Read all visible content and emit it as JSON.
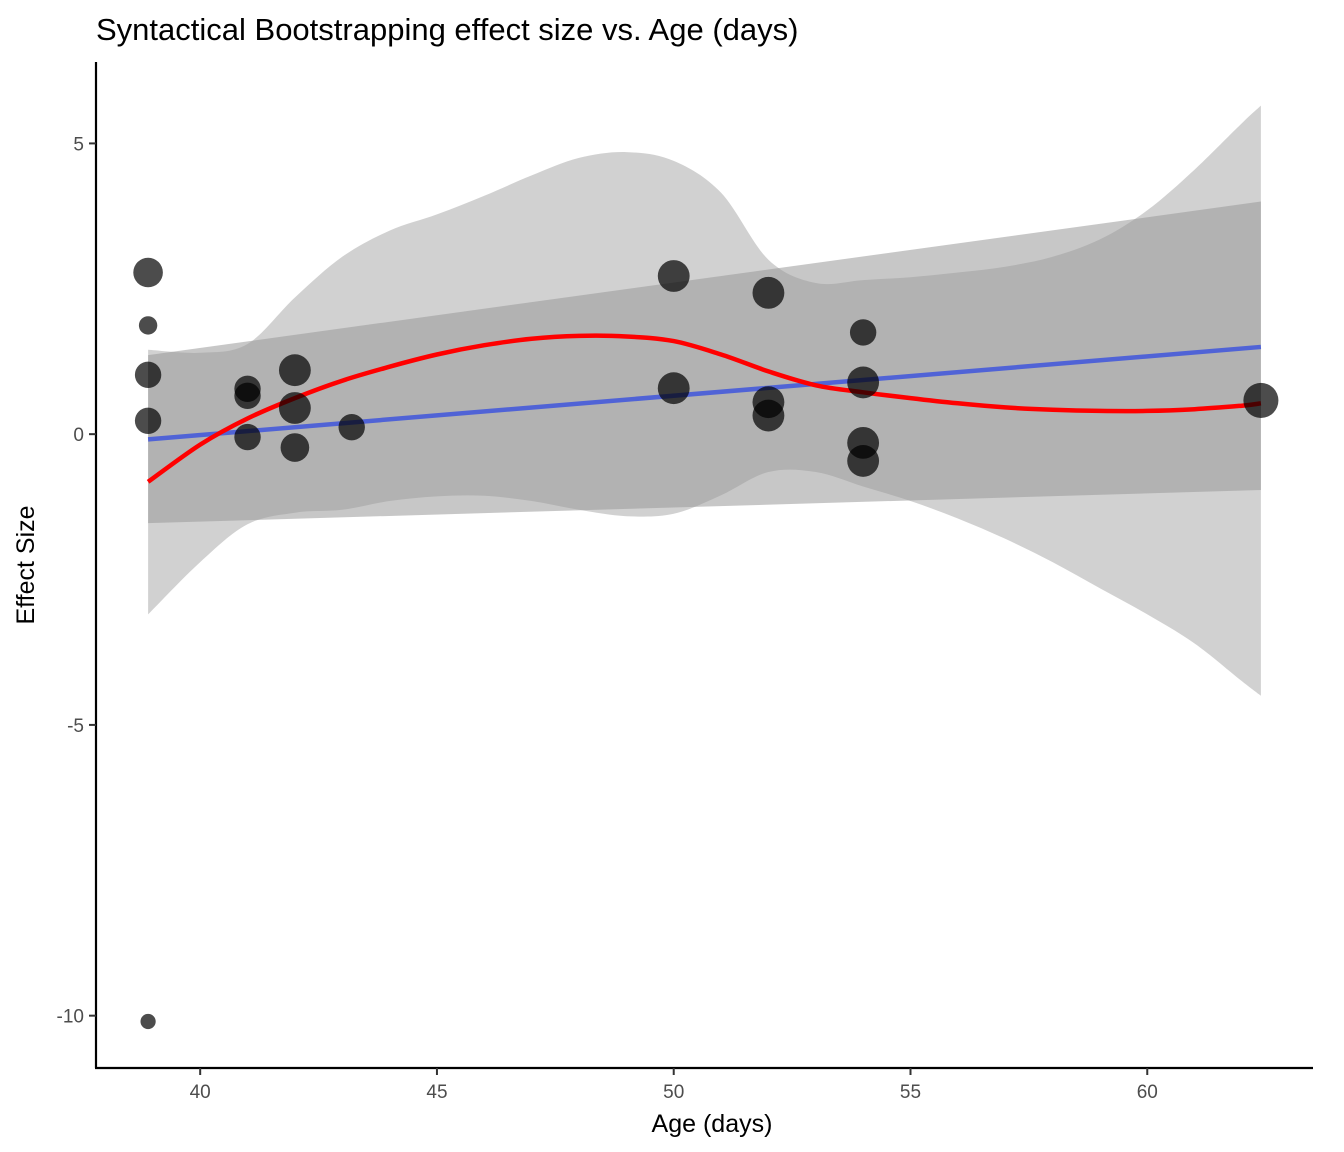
{
  "chart_data": {
    "type": "scatter",
    "title": "Syntactical Bootstrapping effect size vs. Age (days)",
    "xlabel": "Age (days)",
    "ylabel": "Effect Size",
    "xlim": [
      37.8,
      63.5
    ],
    "ylim": [
      -10.9,
      6.4
    ],
    "x_ticks": [
      {
        "value": 40,
        "label": "40"
      },
      {
        "value": 45,
        "label": "45"
      },
      {
        "value": 50,
        "label": "50"
      },
      {
        "value": 55,
        "label": "55"
      },
      {
        "value": 60,
        "label": "60"
      }
    ],
    "y_ticks": [
      {
        "value": 5,
        "label": "5"
      },
      {
        "value": 0,
        "label": "0"
      },
      {
        "value": -5,
        "label": "-5"
      },
      {
        "value": -10,
        "label": "-10"
      }
    ],
    "grid": false,
    "legend": false,
    "point_color": "#000000",
    "point_opacity": 0.7,
    "points": [
      {
        "x": 38.9,
        "y": 2.78,
        "weight": 0.55
      },
      {
        "x": 38.9,
        "y": 1.87,
        "weight": 0.2
      },
      {
        "x": 38.9,
        "y": 1.02,
        "weight": 0.45
      },
      {
        "x": 38.9,
        "y": 0.23,
        "weight": 0.45
      },
      {
        "x": 38.9,
        "y": -10.1,
        "weight": 0.1
      },
      {
        "x": 41.0,
        "y": 0.78,
        "weight": 0.45
      },
      {
        "x": 41.0,
        "y": 0.66,
        "weight": 0.45
      },
      {
        "x": 41.0,
        "y": -0.05,
        "weight": 0.45
      },
      {
        "x": 42.0,
        "y": 1.1,
        "weight": 0.62
      },
      {
        "x": 42.0,
        "y": 0.45,
        "weight": 0.62
      },
      {
        "x": 42.0,
        "y": -0.23,
        "weight": 0.52
      },
      {
        "x": 43.2,
        "y": 0.12,
        "weight": 0.45
      },
      {
        "x": 50.0,
        "y": 2.72,
        "weight": 0.62
      },
      {
        "x": 50.0,
        "y": 0.79,
        "weight": 0.62
      },
      {
        "x": 52.0,
        "y": 2.43,
        "weight": 0.62
      },
      {
        "x": 52.0,
        "y": 0.55,
        "weight": 0.62
      },
      {
        "x": 52.0,
        "y": 0.32,
        "weight": 0.62
      },
      {
        "x": 54.0,
        "y": 1.75,
        "weight": 0.45
      },
      {
        "x": 54.0,
        "y": 0.89,
        "weight": 0.62
      },
      {
        "x": 54.0,
        "y": -0.15,
        "weight": 0.62
      },
      {
        "x": 54.0,
        "y": -0.46,
        "weight": 0.62
      },
      {
        "x": 62.4,
        "y": 0.58,
        "weight": 0.72
      }
    ],
    "linear_fit": {
      "color": "#5063d6",
      "x": [
        38.9,
        62.4
      ],
      "y": [
        -0.09,
        1.5
      ],
      "band_lower": [
        -1.53,
        -0.96
      ],
      "band_upper": [
        1.36,
        4.0
      ],
      "band_color": "#999999"
    },
    "smooth_fit": {
      "color": "#ff0000",
      "x": [
        38.9,
        40,
        41,
        42,
        43,
        44,
        45,
        46,
        47,
        48,
        49,
        50,
        51,
        52,
        53,
        54,
        55,
        56,
        57,
        58,
        59,
        60,
        61,
        62,
        62.4
      ],
      "y": [
        -0.82,
        -0.18,
        0.27,
        0.62,
        0.92,
        1.16,
        1.37,
        1.53,
        1.64,
        1.69,
        1.68,
        1.6,
        1.37,
        1.08,
        0.84,
        0.72,
        0.62,
        0.53,
        0.46,
        0.42,
        0.4,
        0.4,
        0.43,
        0.49,
        0.53
      ],
      "band_lower": [
        -3.1,
        -2.2,
        -1.55,
        -1.35,
        -1.3,
        -1.15,
        -1.07,
        -1.06,
        -1.15,
        -1.3,
        -1.41,
        -1.37,
        -1.05,
        -0.65,
        -0.65,
        -0.9,
        -1.15,
        -1.45,
        -1.8,
        -2.2,
        -2.65,
        -3.1,
        -3.6,
        -4.25,
        -4.5
      ],
      "band_upper": [
        1.45,
        1.4,
        1.55,
        2.35,
        3.05,
        3.5,
        3.78,
        4.1,
        4.45,
        4.75,
        4.85,
        4.7,
        4.15,
        3.0,
        2.6,
        2.65,
        2.7,
        2.78,
        2.88,
        3.05,
        3.35,
        3.85,
        4.55,
        5.35,
        5.65
      ],
      "band_color": "#b3b3b3"
    }
  }
}
